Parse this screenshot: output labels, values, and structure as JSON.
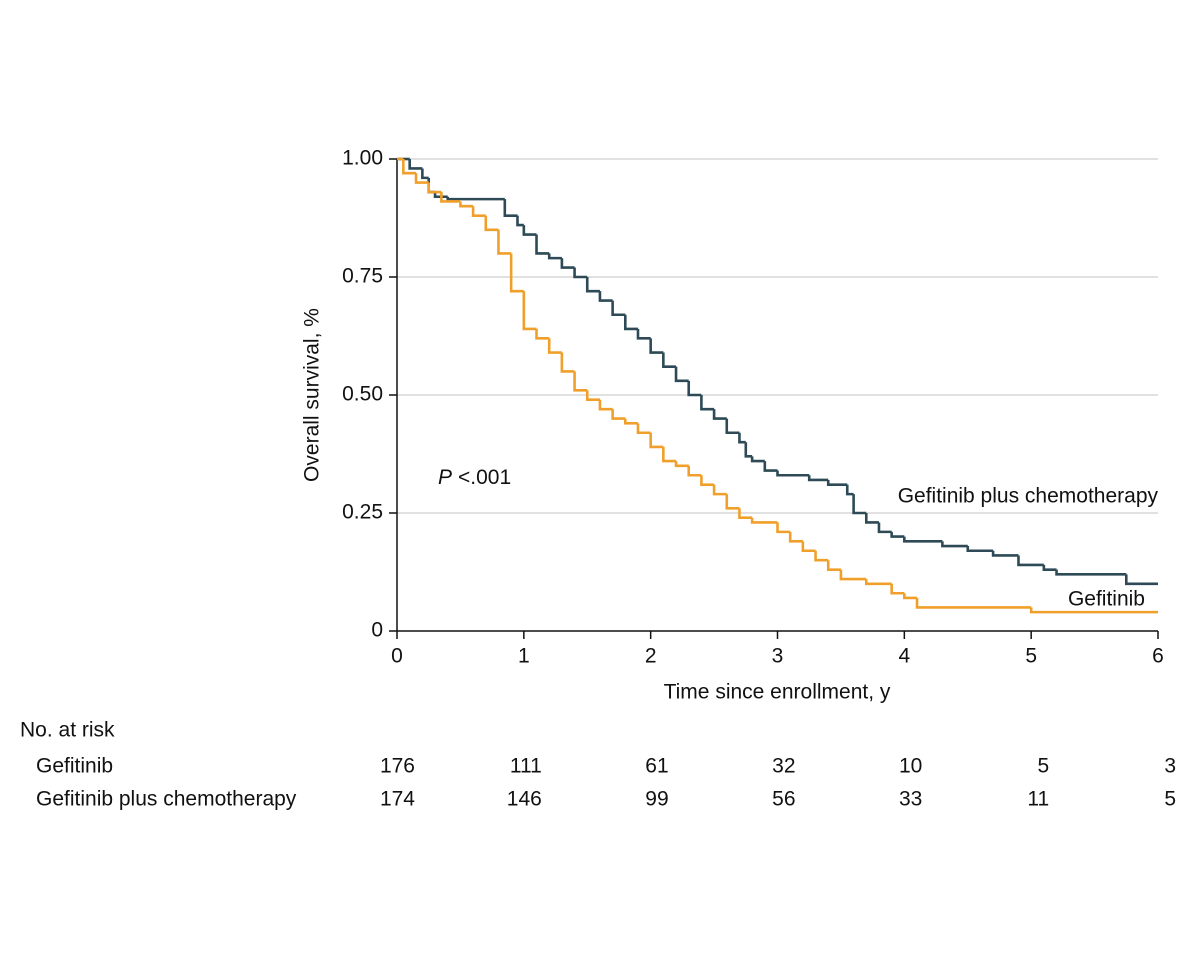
{
  "chart_data": {
    "type": "step",
    "xlabel": "Time since enrollment, y",
    "ylabel": "Overall survival, %",
    "xlim": [
      0,
      6
    ],
    "xticks": [
      0,
      1,
      2,
      3,
      4,
      5,
      6
    ],
    "ylim": [
      0,
      1
    ],
    "yticks": [
      0,
      0.25,
      {
        "value": 0.5,
        "label": "0.50"
      },
      0.75,
      {
        "value": 1,
        "label": "1.00"
      }
    ],
    "grid": true,
    "p_value": {
      "symbol": "P",
      "text": "<.001"
    },
    "series": [
      {
        "name": "Gefitinib plus chemotherapy",
        "color": "#2d4a56",
        "x": [
          0,
          0.1,
          0.2,
          0.25,
          0.3,
          0.4,
          0.85,
          0.95,
          1.0,
          1.1,
          1.2,
          1.3,
          1.4,
          1.5,
          1.6,
          1.7,
          1.8,
          1.9,
          2.0,
          2.1,
          2.2,
          2.3,
          2.4,
          2.5,
          2.6,
          2.7,
          2.75,
          2.8,
          2.9,
          3.0,
          3.25,
          3.4,
          3.55,
          3.6,
          3.7,
          3.8,
          3.9,
          4.0,
          4.3,
          4.5,
          4.7,
          4.9,
          5.1,
          5.2,
          5.75,
          6.0
        ],
        "values": [
          1.0,
          0.98,
          0.96,
          0.93,
          0.92,
          0.915,
          0.88,
          0.86,
          0.84,
          0.8,
          0.79,
          0.77,
          0.75,
          0.72,
          0.7,
          0.67,
          0.64,
          0.62,
          0.59,
          0.56,
          0.53,
          0.5,
          0.47,
          0.45,
          0.42,
          0.4,
          0.37,
          0.36,
          0.34,
          0.33,
          0.32,
          0.31,
          0.29,
          0.25,
          0.23,
          0.21,
          0.2,
          0.19,
          0.18,
          0.17,
          0.16,
          0.14,
          0.13,
          0.12,
          0.1,
          0.1
        ]
      },
      {
        "name": "Gefitinib",
        "color": "#f0a02a",
        "x": [
          0,
          0.05,
          0.15,
          0.25,
          0.35,
          0.5,
          0.6,
          0.7,
          0.8,
          0.9,
          1.0,
          1.1,
          1.2,
          1.3,
          1.4,
          1.5,
          1.6,
          1.7,
          1.8,
          1.9,
          2.0,
          2.1,
          2.2,
          2.3,
          2.4,
          2.5,
          2.6,
          2.7,
          2.8,
          3.0,
          3.1,
          3.2,
          3.3,
          3.4,
          3.5,
          3.7,
          3.9,
          4.0,
          4.1,
          5.0,
          6.0
        ],
        "values": [
          1.0,
          0.97,
          0.95,
          0.93,
          0.91,
          0.9,
          0.88,
          0.85,
          0.8,
          0.72,
          0.64,
          0.62,
          0.59,
          0.55,
          0.51,
          0.49,
          0.47,
          0.45,
          0.44,
          0.42,
          0.39,
          0.36,
          0.35,
          0.33,
          0.31,
          0.29,
          0.26,
          0.24,
          0.23,
          0.21,
          0.19,
          0.17,
          0.15,
          0.13,
          0.11,
          0.1,
          0.08,
          0.07,
          0.05,
          0.04,
          0.04
        ]
      }
    ],
    "risk_table": {
      "title": "No. at risk",
      "rows": [
        {
          "name": "Gefitinib",
          "values": [
            176,
            111,
            61,
            32,
            10,
            5,
            3
          ]
        },
        {
          "name": "Gefitinib plus chemotherapy",
          "values": [
            174,
            146,
            99,
            56,
            33,
            11,
            5
          ]
        }
      ]
    }
  }
}
